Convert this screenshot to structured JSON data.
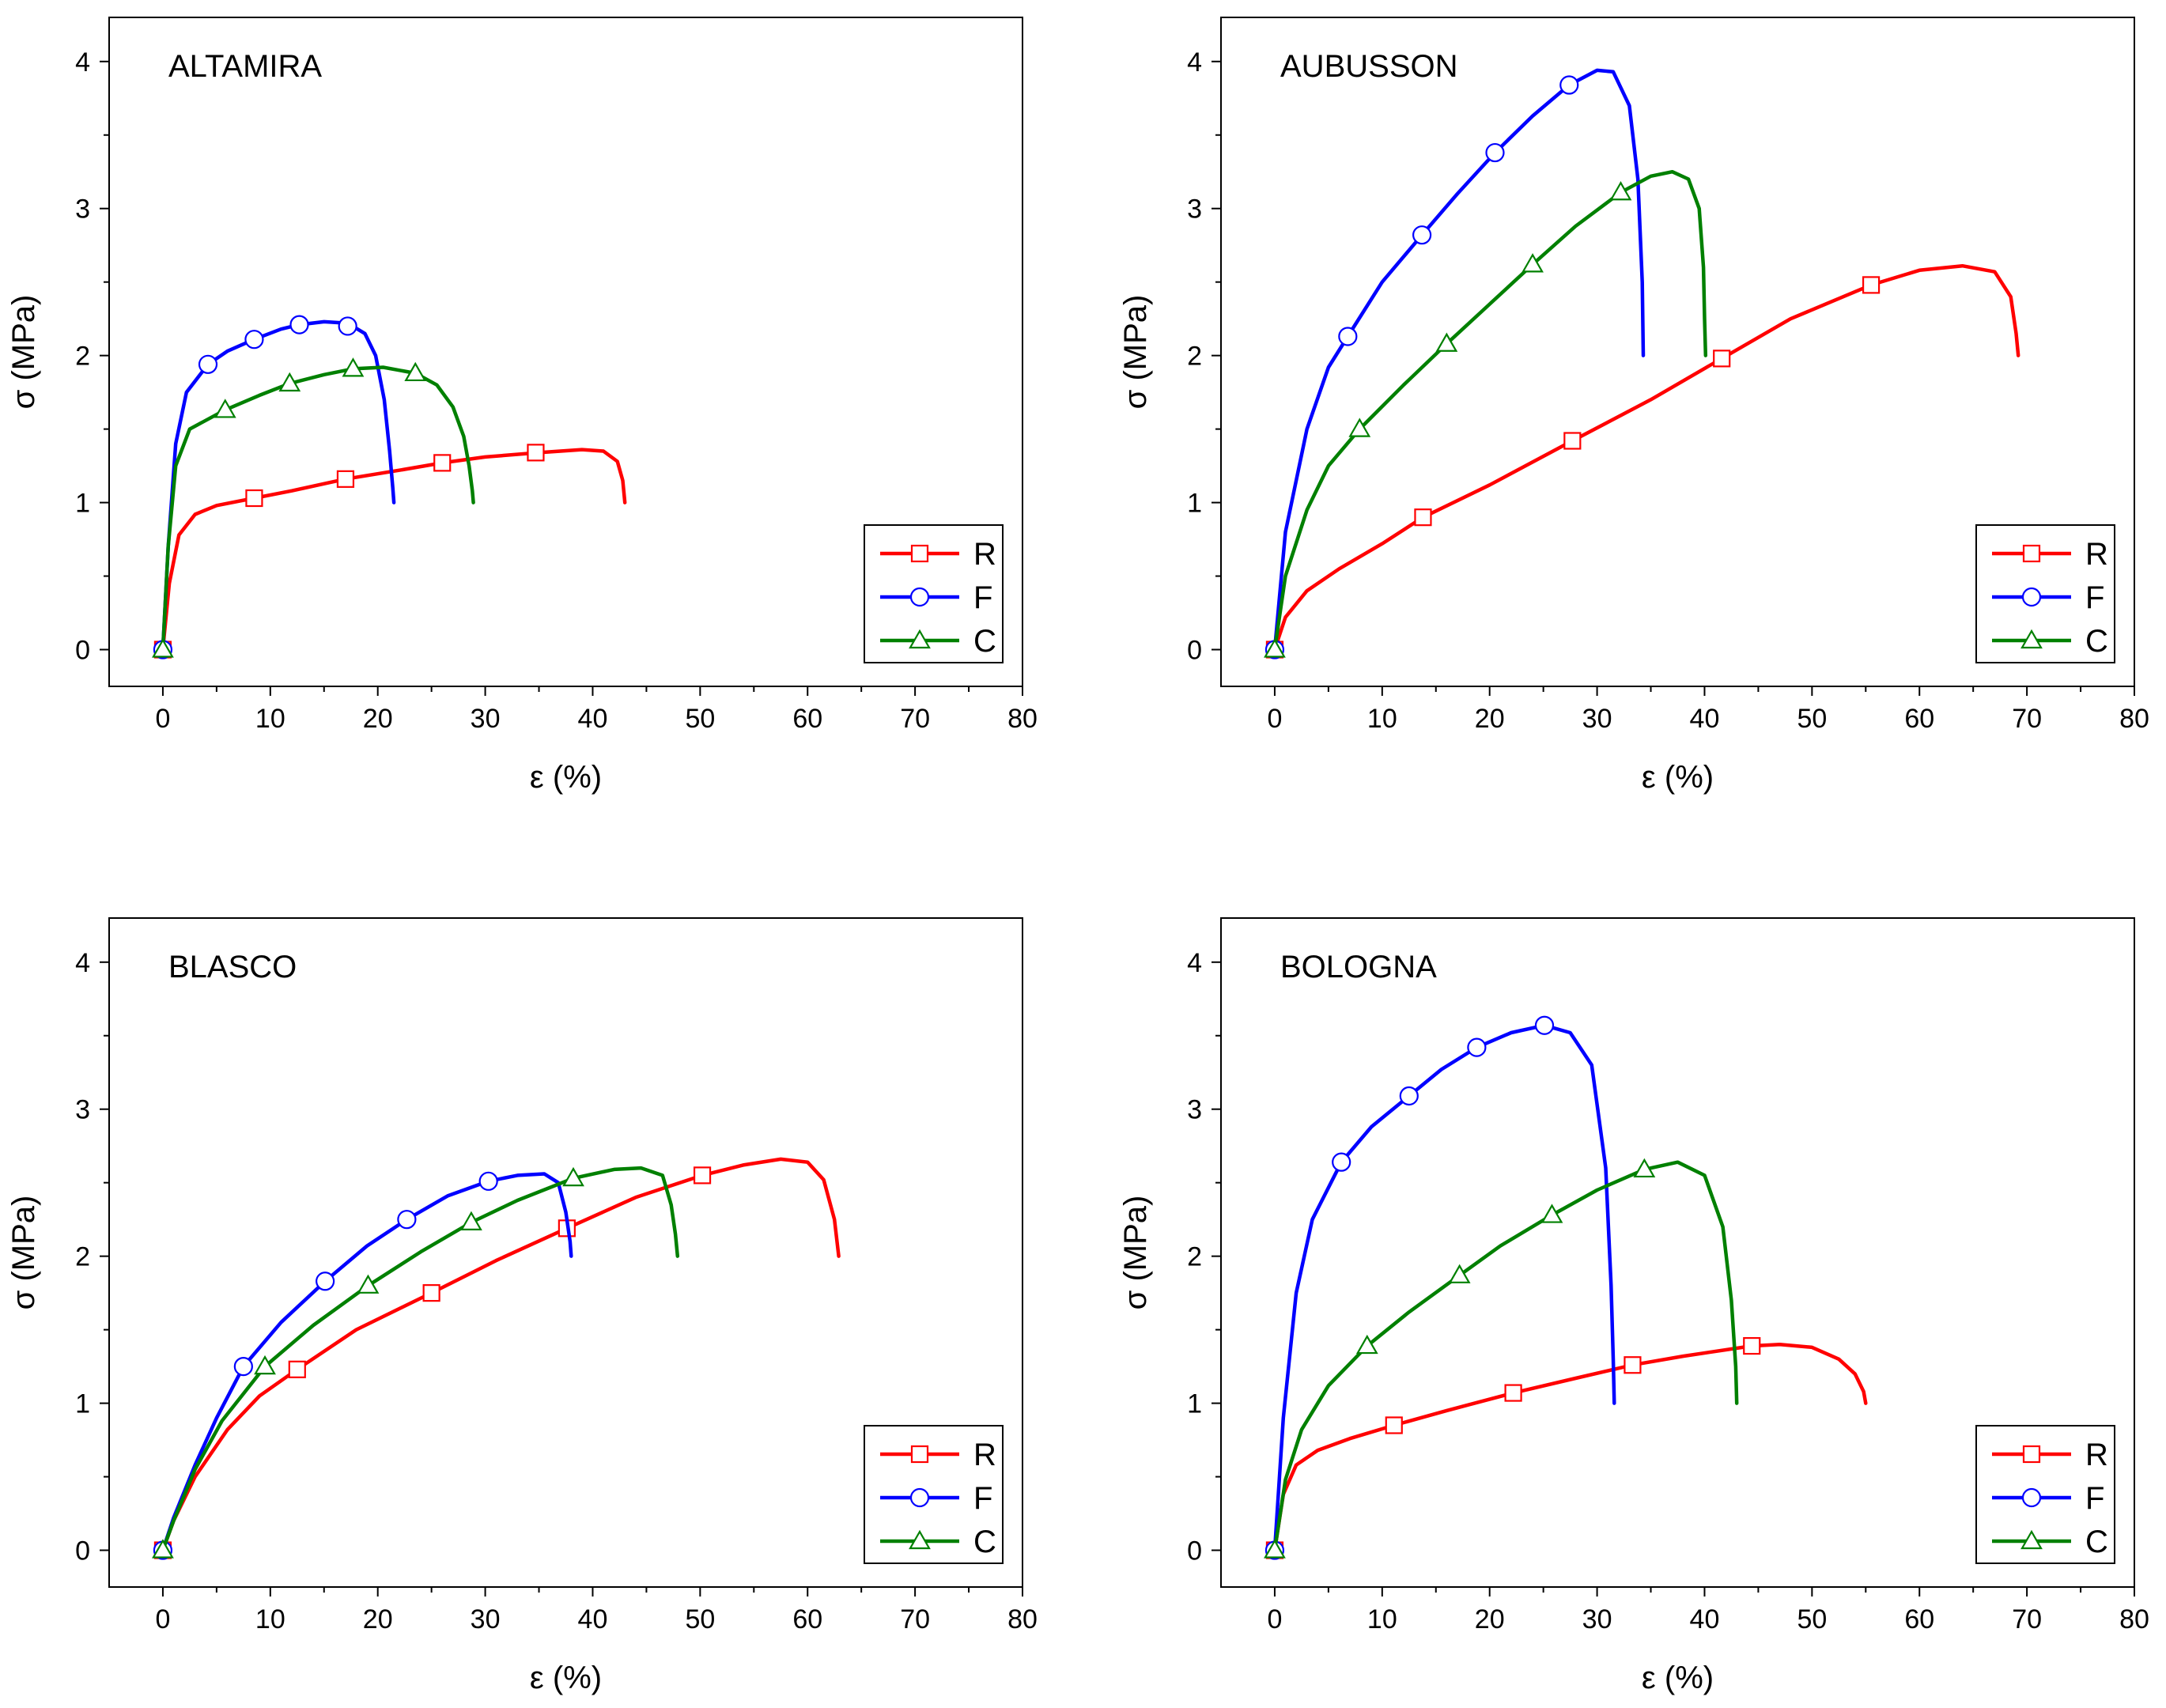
{
  "chart_data": [
    {
      "type": "line",
      "title": "ALTAMIRA",
      "xlabel": "ε (%)",
      "ylabel": "σ (MPa)",
      "xlim": [
        -5,
        80
      ],
      "ylim": [
        -0.25,
        4.3
      ],
      "x_ticks": [
        0,
        10,
        20,
        30,
        40,
        50,
        60,
        70,
        80
      ],
      "y_ticks": [
        0,
        1,
        2,
        3,
        4
      ],
      "legend": "bottom-right",
      "series": [
        {
          "name": "R",
          "color": "#ff0000",
          "marker": "square",
          "x": [
            0,
            0.6,
            1.5,
            3,
            5,
            8.5,
            12,
            17,
            22,
            26,
            30,
            35,
            39,
            41,
            42.3,
            42.8,
            43
          ],
          "y": [
            0,
            0.45,
            0.78,
            0.92,
            0.98,
            1.03,
            1.08,
            1.16,
            1.22,
            1.27,
            1.31,
            1.34,
            1.36,
            1.35,
            1.28,
            1.15,
            1.0
          ],
          "markers_x": [
            0,
            8.5,
            17,
            26,
            34.7
          ],
          "markers_y": [
            0,
            1.03,
            1.16,
            1.27,
            1.34
          ]
        },
        {
          "name": "F",
          "color": "#0000ff",
          "marker": "circle",
          "x": [
            0,
            0.5,
            1.2,
            2.2,
            4.2,
            6,
            8.5,
            11,
            12.7,
            15,
            17.2,
            18.8,
            19.8,
            20.6,
            21.1,
            21.4,
            21.5
          ],
          "y": [
            0,
            0.7,
            1.4,
            1.75,
            1.94,
            2.03,
            2.11,
            2.18,
            2.21,
            2.23,
            2.22,
            2.15,
            2.0,
            1.7,
            1.35,
            1.1,
            1.0
          ],
          "markers_x": [
            0,
            4.2,
            8.5,
            12.7,
            17.2
          ],
          "markers_y": [
            0,
            1.94,
            2.11,
            2.21,
            2.2
          ]
        },
        {
          "name": "C",
          "color": "#008000",
          "marker": "triangle",
          "x": [
            0,
            0.5,
            1.2,
            2.5,
            5.8,
            9,
            11.8,
            15,
            17.7,
            20.5,
            23.5,
            25.5,
            27,
            28,
            28.5,
            28.8,
            28.9
          ],
          "y": [
            0,
            0.7,
            1.25,
            1.5,
            1.63,
            1.73,
            1.81,
            1.87,
            1.91,
            1.92,
            1.88,
            1.8,
            1.65,
            1.45,
            1.25,
            1.08,
            1.0
          ],
          "markers_x": [
            0,
            5.8,
            11.8,
            17.7,
            23.5
          ],
          "markers_y": [
            0,
            1.63,
            1.81,
            1.91,
            1.88
          ]
        }
      ]
    },
    {
      "type": "line",
      "title": "AUBUSSON",
      "xlabel": "ε (%)",
      "ylabel": "σ (MPa)",
      "xlim": [
        -5,
        80
      ],
      "ylim": [
        -0.25,
        4.3
      ],
      "x_ticks": [
        0,
        10,
        20,
        30,
        40,
        50,
        60,
        70,
        80
      ],
      "y_ticks": [
        0,
        1,
        2,
        3,
        4
      ],
      "legend": "bottom-right",
      "series": [
        {
          "name": "R",
          "color": "#ff0000",
          "marker": "square",
          "x": [
            0,
            1,
            3,
            6,
            10,
            13.8,
            20,
            27.7,
            35,
            41.6,
            48,
            55.5,
            60,
            64,
            67,
            68.5,
            69,
            69.2
          ],
          "y": [
            0,
            0.22,
            0.4,
            0.55,
            0.72,
            0.9,
            1.12,
            1.42,
            1.7,
            1.98,
            2.25,
            2.48,
            2.58,
            2.61,
            2.57,
            2.4,
            2.15,
            2.0
          ],
          "markers_x": [
            0,
            13.8,
            27.7,
            41.6,
            55.5
          ],
          "markers_y": [
            0,
            0.9,
            1.42,
            1.98,
            2.48
          ]
        },
        {
          "name": "F",
          "color": "#0000ff",
          "marker": "circle",
          "x": [
            0,
            1,
            3,
            5,
            6.8,
            10,
            13.7,
            17,
            20.5,
            24,
            27.4,
            30,
            31.5,
            33,
            33.8,
            34.2,
            34.3
          ],
          "y": [
            0,
            0.8,
            1.5,
            1.92,
            2.13,
            2.5,
            2.82,
            3.1,
            3.38,
            3.63,
            3.84,
            3.94,
            3.93,
            3.7,
            3.2,
            2.5,
            2.0
          ],
          "markers_x": [
            0,
            6.8,
            13.7,
            20.5,
            27.4
          ],
          "markers_y": [
            0,
            2.13,
            2.82,
            3.38,
            3.84
          ]
        },
        {
          "name": "C",
          "color": "#008000",
          "marker": "triangle",
          "x": [
            0,
            1,
            3,
            5,
            7.9,
            12,
            16,
            20,
            24,
            28,
            32.2,
            35,
            37,
            38.5,
            39.5,
            39.9,
            40,
            40.1
          ],
          "y": [
            0,
            0.5,
            0.95,
            1.25,
            1.5,
            1.8,
            2.08,
            2.35,
            2.62,
            2.88,
            3.11,
            3.22,
            3.25,
            3.2,
            3.0,
            2.6,
            2.25,
            2.0
          ],
          "markers_x": [
            0,
            7.9,
            16,
            24,
            32.2
          ],
          "markers_y": [
            0,
            1.5,
            2.08,
            2.62,
            3.11
          ]
        }
      ]
    },
    {
      "type": "line",
      "title": "BLASCO",
      "xlabel": "ε (%)",
      "ylabel": "σ (MPa)",
      "xlim": [
        -5,
        80
      ],
      "ylim": [
        -0.25,
        4.3
      ],
      "x_ticks": [
        0,
        10,
        20,
        30,
        40,
        50,
        60,
        70,
        80
      ],
      "y_ticks": [
        0,
        1,
        2,
        3,
        4
      ],
      "legend": "bottom-right",
      "series": [
        {
          "name": "R",
          "color": "#ff0000",
          "marker": "square",
          "x": [
            0,
            1,
            3,
            6,
            9,
            12.5,
            18,
            25,
            31,
            37.6,
            44,
            50.2,
            54,
            57.5,
            60,
            61.5,
            62.5,
            62.9
          ],
          "y": [
            0,
            0.2,
            0.5,
            0.82,
            1.05,
            1.23,
            1.5,
            1.75,
            1.97,
            2.19,
            2.4,
            2.55,
            2.62,
            2.66,
            2.64,
            2.52,
            2.25,
            2.0
          ],
          "markers_x": [
            0,
            12.5,
            25,
            37.6,
            50.2
          ],
          "markers_y": [
            0,
            1.23,
            1.75,
            2.19,
            2.55
          ]
        },
        {
          "name": "F",
          "color": "#0000ff",
          "marker": "circle",
          "x": [
            0,
            1,
            3,
            5,
            7.5,
            11,
            15.1,
            19,
            22.7,
            26.5,
            30.3,
            33,
            35.5,
            36.8,
            37.5,
            37.9,
            38
          ],
          "y": [
            0,
            0.22,
            0.58,
            0.9,
            1.25,
            1.55,
            1.83,
            2.07,
            2.25,
            2.41,
            2.51,
            2.55,
            2.56,
            2.5,
            2.3,
            2.1,
            2.0
          ],
          "markers_x": [
            0,
            7.5,
            15.1,
            22.7,
            30.3
          ],
          "markers_y": [
            0,
            1.25,
            1.83,
            2.25,
            2.51
          ]
        },
        {
          "name": "C",
          "color": "#008000",
          "marker": "triangle",
          "x": [
            0,
            1,
            3,
            5.5,
            9.5,
            14,
            19.1,
            24,
            28.7,
            33,
            38.2,
            42,
            44.5,
            46.5,
            47.3,
            47.7,
            47.9
          ],
          "y": [
            0,
            0.2,
            0.55,
            0.88,
            1.25,
            1.53,
            1.8,
            2.03,
            2.23,
            2.38,
            2.53,
            2.59,
            2.6,
            2.55,
            2.35,
            2.15,
            2.0
          ],
          "markers_x": [
            0,
            9.5,
            19.1,
            28.7,
            38.2
          ],
          "markers_y": [
            0,
            1.25,
            1.8,
            2.23,
            2.53
          ]
        }
      ]
    },
    {
      "type": "line",
      "title": "BOLOGNA",
      "xlabel": "ε (%)",
      "ylabel": "σ (MPa)",
      "xlim": [
        -5,
        80
      ],
      "ylim": [
        -0.25,
        4.3
      ],
      "x_ticks": [
        0,
        10,
        20,
        30,
        40,
        50,
        60,
        70,
        80
      ],
      "y_ticks": [
        0,
        1,
        2,
        3,
        4
      ],
      "legend": "bottom-right",
      "series": [
        {
          "name": "R",
          "color": "#ff0000",
          "marker": "square",
          "x": [
            0,
            0.8,
            2,
            4,
            7,
            11.1,
            16,
            22.2,
            28,
            33.3,
            38,
            44.4,
            47,
            50,
            52.5,
            54,
            54.8,
            55
          ],
          "y": [
            0,
            0.38,
            0.58,
            0.68,
            0.76,
            0.85,
            0.95,
            1.07,
            1.17,
            1.26,
            1.32,
            1.39,
            1.4,
            1.38,
            1.3,
            1.2,
            1.08,
            1.0
          ],
          "markers_x": [
            0,
            11.1,
            22.2,
            33.3,
            44.4
          ],
          "markers_y": [
            0,
            0.85,
            1.07,
            1.26,
            1.39
          ]
        },
        {
          "name": "F",
          "color": "#0000ff",
          "marker": "circle",
          "x": [
            0,
            0.8,
            2,
            3.5,
            6.2,
            9,
            12.5,
            15.5,
            18.8,
            22,
            25.1,
            27.5,
            29.5,
            30.8,
            31.3,
            31.5,
            31.6
          ],
          "y": [
            0,
            0.9,
            1.75,
            2.25,
            2.64,
            2.88,
            3.09,
            3.27,
            3.42,
            3.52,
            3.57,
            3.52,
            3.3,
            2.6,
            1.8,
            1.3,
            1.0
          ],
          "markers_x": [
            0,
            6.2,
            12.5,
            18.8,
            25.1
          ],
          "markers_y": [
            0,
            2.64,
            3.09,
            3.42,
            3.57
          ]
        },
        {
          "name": "C",
          "color": "#008000",
          "marker": "triangle",
          "x": [
            0,
            1,
            2.5,
            5,
            8.6,
            12.5,
            17.2,
            21,
            25.8,
            30,
            34.4,
            37.5,
            40,
            41.7,
            42.5,
            42.9,
            43
          ],
          "y": [
            0,
            0.48,
            0.82,
            1.12,
            1.39,
            1.62,
            1.87,
            2.07,
            2.28,
            2.45,
            2.59,
            2.64,
            2.55,
            2.2,
            1.7,
            1.25,
            1.0
          ],
          "markers_x": [
            0,
            8.6,
            17.2,
            25.8,
            34.4
          ],
          "markers_y": [
            0,
            1.39,
            1.87,
            2.28,
            2.59
          ]
        }
      ]
    }
  ]
}
